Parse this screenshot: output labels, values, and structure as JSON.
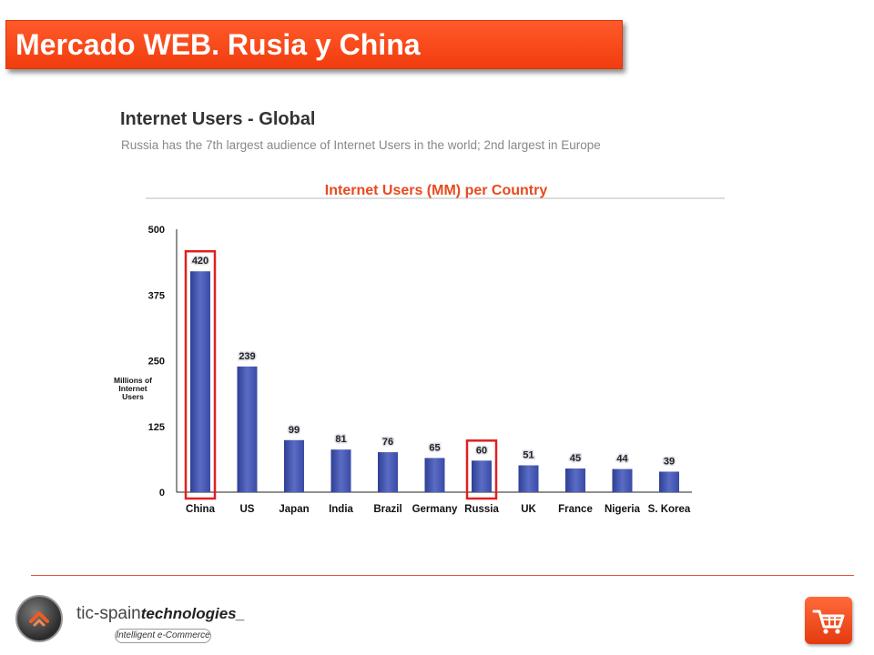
{
  "banner": {
    "title": "Mercado WEB. Rusia y China"
  },
  "slide": {
    "heading": "Internet Users - Global",
    "subheading": "Russia has the 7th largest audience of Internet Users in the world; 2nd largest in Europe"
  },
  "chart_data": {
    "type": "bar",
    "title": "Internet Users (MM) per Country",
    "ylabel": [
      "Millions of",
      "Internet",
      "Users"
    ],
    "xlabel": "",
    "categories": [
      "China",
      "US",
      "Japan",
      "India",
      "Brazil",
      "Germany",
      "Russia",
      "UK",
      "France",
      "Nigeria",
      "S. Korea"
    ],
    "values": [
      420,
      239,
      99,
      81,
      76,
      65,
      60,
      51,
      45,
      44,
      39
    ],
    "data_labels": [
      "420",
      "239",
      "99",
      "81",
      "76",
      "65",
      "60",
      "51",
      "45",
      "44",
      "39"
    ],
    "yticks": [
      0,
      125,
      250,
      375,
      500
    ],
    "ylim": [
      0,
      500
    ],
    "grid": false,
    "highlighted_categories": [
      "China",
      "Russia"
    ],
    "colors": {
      "bar": "#3b4fa8",
      "title": "#e84a1e",
      "highlight": "#e02020"
    }
  },
  "footer": {
    "brand_main": "tic-spain",
    "brand_tech": "technologies_",
    "tagline": "Intelligent e-Commerce",
    "logo_icon": "chevron-logo-icon",
    "cart_icon": "shopping-cart-icon"
  }
}
